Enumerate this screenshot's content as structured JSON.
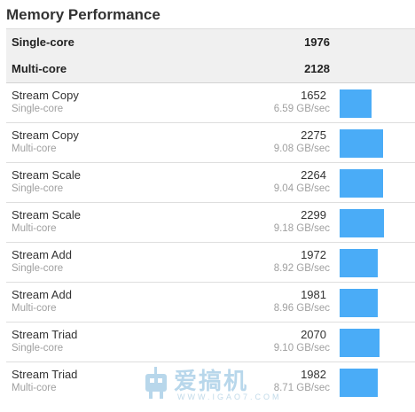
{
  "title": "Memory Performance",
  "summary": [
    {
      "label": "Single-core",
      "score": "1976"
    },
    {
      "label": "Multi-core",
      "score": "2128"
    }
  ],
  "colors": {
    "bar": "#4aacf7"
  },
  "bar_max_score": 2299,
  "rows": [
    {
      "name": "Stream Copy",
      "mode": "Single-core",
      "score": "1652",
      "rate": "6.59 GB/sec",
      "value": 1652
    },
    {
      "name": "Stream Copy",
      "mode": "Multi-core",
      "score": "2275",
      "rate": "9.08 GB/sec",
      "value": 2275
    },
    {
      "name": "Stream Scale",
      "mode": "Single-core",
      "score": "2264",
      "rate": "9.04 GB/sec",
      "value": 2264
    },
    {
      "name": "Stream Scale",
      "mode": "Multi-core",
      "score": "2299",
      "rate": "9.18 GB/sec",
      "value": 2299
    },
    {
      "name": "Stream Add",
      "mode": "Single-core",
      "score": "1972",
      "rate": "8.92 GB/sec",
      "value": 1972
    },
    {
      "name": "Stream Add",
      "mode": "Multi-core",
      "score": "1981",
      "rate": "8.96 GB/sec",
      "value": 1981
    },
    {
      "name": "Stream Triad",
      "mode": "Single-core",
      "score": "2070",
      "rate": "9.10 GB/sec",
      "value": 2070
    },
    {
      "name": "Stream Triad",
      "mode": "Multi-core",
      "score": "1982",
      "rate": "8.71 GB/sec",
      "value": 1982
    }
  ],
  "watermark": {
    "text": "爱搞机",
    "sub": "WWW.IGAO7.COM"
  }
}
